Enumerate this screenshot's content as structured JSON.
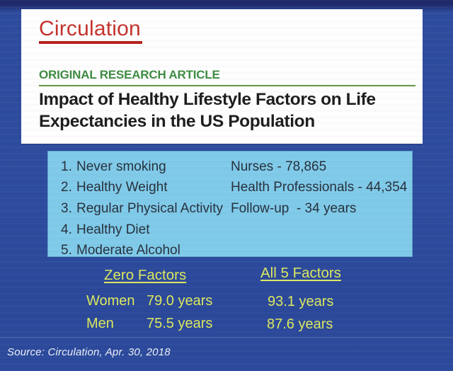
{
  "journal": {
    "logo": "Circulation"
  },
  "article": {
    "kicker": "ORIGINAL RESEARCH ARTICLE",
    "title_line1": "Impact of Healthy Lifestyle Factors on Life",
    "title_line2": "Expectancies in the US Population"
  },
  "factors_box": {
    "factors": [
      {
        "num": "1.",
        "label": "Never smoking"
      },
      {
        "num": "2.",
        "label": "Healthy Weight"
      },
      {
        "num": "3.",
        "label": "Regular Physical Activity"
      },
      {
        "num": "4.",
        "label": "Healthy Diet"
      },
      {
        "num": "5.",
        "label": "Moderate Alcohol"
      }
    ],
    "cohorts": [
      "Nurses - 78,865",
      "Health Professionals - 44,354",
      "Follow-up  - 34 years"
    ]
  },
  "results": {
    "zero_factors": {
      "heading": "Zero Factors",
      "rows": [
        {
          "label": "Women",
          "value": "79.0 years"
        },
        {
          "label": "Men",
          "value": "75.5 years"
        }
      ]
    },
    "all_5_factors": {
      "heading": "All 5 Factors",
      "values": [
        "93.1 years",
        "87.6 years"
      ]
    }
  },
  "source": "Source: Circulation, Apr. 30, 2018",
  "colors": {
    "background_blue": "#2e4c9e",
    "top_strip_navy": "#212b6d",
    "card_white": "#fefefe",
    "journal_red": "#c5322c",
    "kicker_green": "#3e8b42",
    "title_black": "#1d1d1d",
    "factors_box_blue": "#80cae9",
    "factors_text_navy": "#26313d",
    "results_yellow": "#dce95e",
    "source_white": "#eef1f8"
  }
}
